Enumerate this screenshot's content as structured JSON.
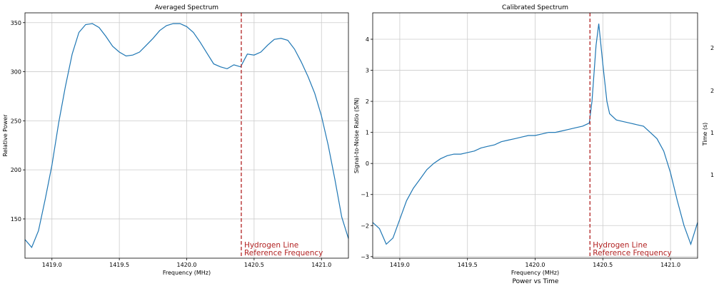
{
  "figure": {
    "bottom_title": "Power vs Time",
    "right_axis_label": "Time (s)",
    "right_tick_fragments": [
      "2",
      "2",
      "1",
      "1"
    ]
  },
  "chart_data": [
    {
      "type": "line",
      "title": "Averaged Spectrum",
      "xlabel": "Frequency (MHz)",
      "ylabel": "Relative Power",
      "xlim": [
        1418.8,
        1421.2
      ],
      "ylim": [
        110,
        360
      ],
      "xticks": [
        1419.0,
        1419.5,
        1420.0,
        1420.5,
        1421.0
      ],
      "xtick_labels": [
        "1419.0",
        "1419.5",
        "1420.0",
        "1420.5",
        "1421.0"
      ],
      "yticks": [
        150,
        200,
        250,
        300,
        350
      ],
      "ytick_labels": [
        "150",
        "200",
        "250",
        "300",
        "350"
      ],
      "grid": true,
      "line_color": "#1f77b4",
      "reference_line": {
        "x": 1420.405,
        "color": "#b22222",
        "label_lines": [
          "Hydrogen Line",
          "Reference Frequency"
        ]
      },
      "series": [
        {
          "x": [
            1418.8,
            1418.85,
            1418.9,
            1418.95,
            1419.0,
            1419.05,
            1419.1,
            1419.15,
            1419.2,
            1419.25,
            1419.3,
            1419.35,
            1419.4,
            1419.45,
            1419.5,
            1419.55,
            1419.6,
            1419.65,
            1419.7,
            1419.75,
            1419.8,
            1419.85,
            1419.9,
            1419.95,
            1420.0,
            1420.05,
            1420.1,
            1420.15,
            1420.2,
            1420.25,
            1420.3,
            1420.35,
            1420.4,
            1420.45,
            1420.5,
            1420.55,
            1420.6,
            1420.65,
            1420.7,
            1420.75,
            1420.8,
            1420.85,
            1420.9,
            1420.95,
            1421.0,
            1421.05,
            1421.1,
            1421.15,
            1421.2
          ],
          "y": [
            129,
            121,
            138,
            170,
            205,
            248,
            285,
            318,
            340,
            348,
            349,
            345,
            336,
            326,
            320,
            316,
            317,
            320,
            327,
            334,
            342,
            347,
            349,
            349,
            346,
            340,
            330,
            319,
            308,
            305,
            303,
            307,
            305,
            318,
            317,
            320,
            327,
            333,
            334,
            332,
            323,
            310,
            295,
            278,
            255,
            225,
            190,
            152,
            130
          ]
        }
      ]
    },
    {
      "type": "line",
      "title": "Calibrated Spectrum",
      "xlabel": "Frequency (MHz)",
      "ylabel": "Signal-to-Noise Ratio (S/N)",
      "xlim": [
        1418.8,
        1421.2
      ],
      "ylim": [
        -3.05,
        4.85
      ],
      "xticks": [
        1419.0,
        1419.5,
        1420.0,
        1420.5,
        1421.0
      ],
      "xtick_labels": [
        "1419.0",
        "1419.5",
        "1420.0",
        "1420.5",
        "1421.0"
      ],
      "yticks": [
        -3,
        -2,
        -1,
        0,
        1,
        2,
        3,
        4
      ],
      "ytick_labels": [
        "−3",
        "−2",
        "−1",
        "0",
        "1",
        "2",
        "3",
        "4"
      ],
      "grid": true,
      "line_color": "#1f77b4",
      "reference_line": {
        "x": 1420.405,
        "color": "#b22222",
        "label_lines": [
          "Hydrogen Line",
          "Reference Frequency"
        ]
      },
      "series": [
        {
          "x": [
            1418.8,
            1418.85,
            1418.9,
            1418.95,
            1419.0,
            1419.05,
            1419.1,
            1419.15,
            1419.2,
            1419.25,
            1419.3,
            1419.35,
            1419.4,
            1419.45,
            1419.5,
            1419.55,
            1419.6,
            1419.65,
            1419.7,
            1419.75,
            1419.8,
            1419.85,
            1419.9,
            1419.95,
            1420.0,
            1420.05,
            1420.1,
            1420.15,
            1420.2,
            1420.25,
            1420.3,
            1420.35,
            1420.4,
            1420.42,
            1420.45,
            1420.47,
            1420.5,
            1420.53,
            1420.55,
            1420.6,
            1420.65,
            1420.7,
            1420.75,
            1420.8,
            1420.85,
            1420.9,
            1420.95,
            1421.0,
            1421.05,
            1421.1,
            1421.15,
            1421.2
          ],
          "y": [
            -1.9,
            -2.1,
            -2.6,
            -2.4,
            -1.8,
            -1.2,
            -0.8,
            -0.5,
            -0.2,
            0.0,
            0.15,
            0.25,
            0.3,
            0.3,
            0.35,
            0.4,
            0.5,
            0.55,
            0.6,
            0.7,
            0.75,
            0.8,
            0.85,
            0.9,
            0.9,
            0.95,
            1.0,
            1.0,
            1.05,
            1.1,
            1.15,
            1.2,
            1.3,
            2.0,
            3.8,
            4.5,
            3.2,
            2.0,
            1.6,
            1.4,
            1.35,
            1.3,
            1.25,
            1.2,
            1.0,
            0.8,
            0.4,
            -0.3,
            -1.2,
            -2.0,
            -2.6,
            -1.9
          ]
        }
      ]
    }
  ]
}
